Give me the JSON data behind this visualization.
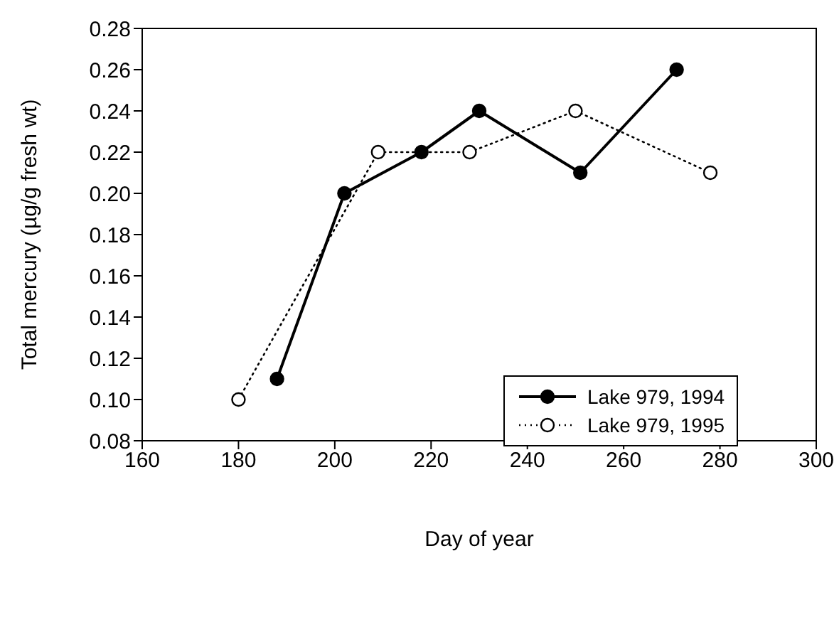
{
  "chart_data": {
    "type": "line",
    "xlabel": "Day of year",
    "ylabel": "Total mercury (µg/g fresh wt)",
    "xlim": [
      160,
      300
    ],
    "xticks": [
      160,
      180,
      200,
      220,
      240,
      260,
      280,
      300
    ],
    "ylim": [
      0.08,
      0.28
    ],
    "yticks": [
      {
        "value": 0.08,
        "label": "0.08"
      },
      {
        "value": 0.1,
        "label": "0.10"
      },
      {
        "value": 0.12,
        "label": "0.12"
      },
      {
        "value": 0.14,
        "label": "0.14"
      },
      {
        "value": 0.16,
        "label": "0.16"
      },
      {
        "value": 0.18,
        "label": "0.18"
      },
      {
        "value": 0.2,
        "label": "0.20"
      },
      {
        "value": 0.22,
        "label": "0.22"
      },
      {
        "value": 0.24,
        "label": "0.24"
      },
      {
        "value": 0.26,
        "label": "0.26"
      },
      {
        "value": 0.28,
        "label": "0.28"
      }
    ],
    "grid": false,
    "legend": "bottom right",
    "marker": "circle",
    "series": [
      {
        "name": "Lake 979, 1994",
        "color": "#000000",
        "line_style": "solid",
        "x": [
          188,
          202,
          218,
          230,
          251,
          271
        ],
        "values": [
          0.11,
          0.2,
          0.22,
          0.24,
          0.21,
          0.26
        ]
      },
      {
        "name": "Lake 979, 1995",
        "color": "#000000",
        "line_style": "dotted",
        "x": [
          180,
          209,
          228,
          250,
          278
        ],
        "values": [
          0.1,
          0.22,
          0.22,
          0.24,
          0.21
        ]
      }
    ]
  }
}
